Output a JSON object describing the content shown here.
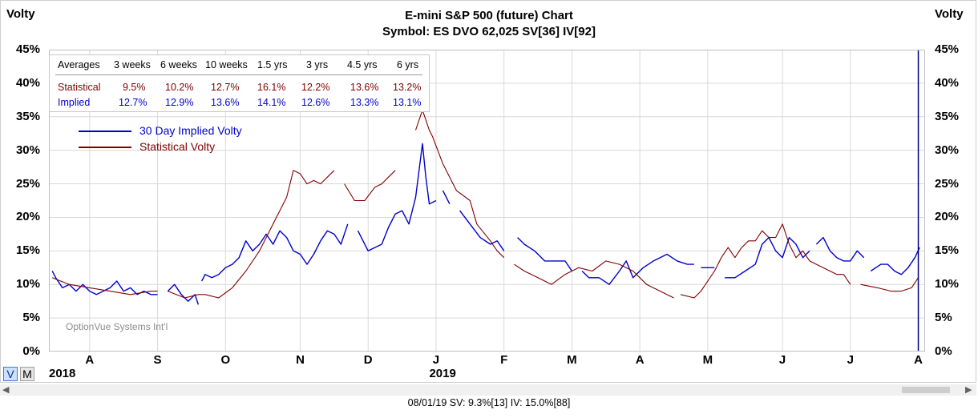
{
  "header": {
    "left_label": "Volty",
    "right_label": "Volty",
    "title": "E-mini S&P 500 (future) Chart",
    "subtitle": "Symbol: ES  DVO 62,025  SV[36]  IV[92]"
  },
  "averages": {
    "columns": [
      "Averages",
      "3 weeks",
      "6 weeks",
      "10 weeks",
      "1.5 yrs",
      "3 yrs",
      "4.5 yrs",
      "6 yrs"
    ],
    "statistical": {
      "label": "Statistical",
      "values": [
        "9.5%",
        "10.2%",
        "12.7%",
        "16.1%",
        "12.2%",
        "13.6%",
        "13.2%"
      ]
    },
    "implied": {
      "label": "Implied",
      "values": [
        "12.7%",
        "12.9%",
        "13.6%",
        "14.1%",
        "12.6%",
        "13.3%",
        "13.1%"
      ]
    }
  },
  "legend": {
    "implied": "30 Day Implied Volty",
    "statistical": "Statistical Volty"
  },
  "watermark": "OptionVue Systems Int'l",
  "buttons": {
    "v": "V",
    "m": "M"
  },
  "status": "08/01/19  SV: 9.3%[13]  IV: 15.0%[88]",
  "colors": {
    "implied": "#0000cc",
    "statistical": "#800000",
    "grid": "#d9d9d9",
    "cursor": "#00008b"
  },
  "chart_data": {
    "type": "line",
    "ylim": [
      0,
      45
    ],
    "y_ticks": [
      "0%",
      "5%",
      "10%",
      "15%",
      "20%",
      "25%",
      "30%",
      "35%",
      "40%",
      "45%"
    ],
    "x_range": [
      0,
      12.9
    ],
    "month_ticks": [
      {
        "label": "A",
        "x": 0.6
      },
      {
        "label": "S",
        "x": 1.6
      },
      {
        "label": "O",
        "x": 2.6
      },
      {
        "label": "N",
        "x": 3.7
      },
      {
        "label": "D",
        "x": 4.7
      },
      {
        "label": "J",
        "x": 5.7
      },
      {
        "label": "F",
        "x": 6.7
      },
      {
        "label": "M",
        "x": 7.7
      },
      {
        "label": "A",
        "x": 8.7
      },
      {
        "label": "M",
        "x": 9.7
      },
      {
        "label": "J",
        "x": 10.8
      },
      {
        "label": "J",
        "x": 11.8
      },
      {
        "label": "A",
        "x": 12.8
      }
    ],
    "year_labels": [
      {
        "label": "2018",
        "x": 0.0
      },
      {
        "label": "2019",
        "x": 5.6
      }
    ],
    "cursor_x": 12.8,
    "series": [
      {
        "key": "implied",
        "name": "30 Day Implied Volty",
        "segments": [
          [
            [
              0.05,
              12
            ],
            [
              0.1,
              11
            ],
            [
              0.2,
              9.5
            ],
            [
              0.3,
              10
            ],
            [
              0.4,
              9
            ],
            [
              0.5,
              10
            ],
            [
              0.6,
              9
            ],
            [
              0.7,
              8.5
            ],
            [
              0.8,
              9
            ],
            [
              0.9,
              9.5
            ],
            [
              1.0,
              10.5
            ],
            [
              1.1,
              9
            ],
            [
              1.2,
              9.5
            ],
            [
              1.3,
              8.5
            ],
            [
              1.4,
              9
            ],
            [
              1.5,
              8.5
            ],
            [
              1.6,
              8.5
            ]
          ],
          [
            [
              1.75,
              9
            ],
            [
              1.85,
              10
            ],
            [
              1.95,
              8.5
            ],
            [
              2.05,
              7.5
            ],
            [
              2.15,
              8.5
            ],
            [
              2.2,
              7
            ]
          ],
          [
            [
              2.25,
              10.5
            ],
            [
              2.3,
              11.5
            ],
            [
              2.4,
              11
            ],
            [
              2.5,
              11.5
            ],
            [
              2.6,
              12.5
            ],
            [
              2.7,
              13
            ],
            [
              2.8,
              14
            ],
            [
              2.9,
              16.5
            ],
            [
              3.0,
              15
            ],
            [
              3.1,
              16
            ],
            [
              3.2,
              17.5
            ],
            [
              3.3,
              16
            ],
            [
              3.4,
              18
            ],
            [
              3.5,
              17
            ],
            [
              3.6,
              15
            ],
            [
              3.7,
              14.5
            ],
            [
              3.8,
              13
            ],
            [
              3.9,
              14.5
            ],
            [
              4.0,
              16.5
            ],
            [
              4.1,
              18
            ],
            [
              4.2,
              17.5
            ],
            [
              4.3,
              16
            ],
            [
              4.4,
              19
            ]
          ],
          [
            [
              4.55,
              18
            ],
            [
              4.7,
              15
            ],
            [
              4.8,
              15.5
            ],
            [
              4.9,
              16
            ],
            [
              5.0,
              18.5
            ],
            [
              5.1,
              20.5
            ],
            [
              5.2,
              21
            ],
            [
              5.3,
              19
            ],
            [
              5.4,
              23
            ],
            [
              5.5,
              31
            ],
            [
              5.55,
              26
            ],
            [
              5.6,
              22
            ],
            [
              5.7,
              22.5
            ]
          ],
          [
            [
              5.8,
              24
            ],
            [
              5.9,
              22
            ]
          ],
          [
            [
              6.05,
              21
            ],
            [
              6.2,
              19
            ],
            [
              6.35,
              17
            ],
            [
              6.5,
              16
            ],
            [
              6.6,
              16.5
            ],
            [
              6.7,
              15
            ]
          ],
          [
            [
              6.9,
              17
            ],
            [
              7.0,
              16
            ],
            [
              7.15,
              15
            ],
            [
              7.3,
              13.5
            ],
            [
              7.45,
              13.5
            ],
            [
              7.6,
              13.5
            ],
            [
              7.7,
              12
            ]
          ],
          [
            [
              7.85,
              12
            ],
            [
              7.95,
              11
            ],
            [
              8.1,
              11
            ],
            [
              8.25,
              10
            ],
            [
              8.4,
              12
            ],
            [
              8.5,
              13.5
            ],
            [
              8.6,
              11
            ],
            [
              8.75,
              12.5
            ],
            [
              8.9,
              13.5
            ],
            [
              9.0,
              14
            ],
            [
              9.1,
              14.5
            ],
            [
              9.25,
              13.5
            ],
            [
              9.4,
              13
            ],
            [
              9.5,
              13
            ]
          ],
          [
            [
              9.6,
              12.5
            ],
            [
              9.8,
              12.5
            ]
          ],
          [
            [
              9.95,
              11
            ],
            [
              10.1,
              11
            ],
            [
              10.25,
              12
            ],
            [
              10.4,
              13
            ],
            [
              10.5,
              16
            ],
            [
              10.6,
              17
            ],
            [
              10.7,
              15
            ],
            [
              10.8,
              14
            ],
            [
              10.9,
              17
            ],
            [
              11.0,
              16
            ],
            [
              11.1,
              14
            ],
            [
              11.2,
              15
            ]
          ],
          [
            [
              11.3,
              16
            ],
            [
              11.4,
              17
            ],
            [
              11.5,
              15
            ],
            [
              11.6,
              14
            ],
            [
              11.7,
              13.5
            ],
            [
              11.8,
              13.5
            ],
            [
              11.9,
              15
            ],
            [
              12.0,
              14
            ]
          ],
          [
            [
              12.1,
              12
            ],
            [
              12.25,
              13
            ],
            [
              12.35,
              13
            ],
            [
              12.45,
              12
            ],
            [
              12.55,
              11.5
            ],
            [
              12.65,
              12.5
            ],
            [
              12.75,
              14
            ],
            [
              12.82,
              15.5
            ]
          ]
        ]
      },
      {
        "key": "statistical",
        "name": "Statistical Volty",
        "segments": [
          [
            [
              0.05,
              11
            ],
            [
              0.3,
              10
            ],
            [
              0.6,
              9.5
            ],
            [
              0.9,
              9
            ],
            [
              1.2,
              8.5
            ],
            [
              1.5,
              9
            ],
            [
              1.6,
              9
            ]
          ],
          [
            [
              1.75,
              9
            ],
            [
              2.0,
              8
            ],
            [
              2.2,
              8.5
            ],
            [
              2.3,
              8.5
            ],
            [
              2.5,
              8
            ],
            [
              2.7,
              9.5
            ],
            [
              2.9,
              12
            ],
            [
              3.1,
              15
            ],
            [
              3.3,
              19
            ],
            [
              3.5,
              23
            ],
            [
              3.6,
              27
            ],
            [
              3.7,
              26.5
            ],
            [
              3.8,
              25
            ],
            [
              3.9,
              25.5
            ],
            [
              4.0,
              25
            ],
            [
              4.1,
              26
            ],
            [
              4.2,
              27
            ]
          ],
          [
            [
              4.35,
              25
            ],
            [
              4.5,
              22.5
            ],
            [
              4.65,
              22.5
            ],
            [
              4.8,
              24.5
            ],
            [
              4.9,
              25
            ],
            [
              5.0,
              26
            ],
            [
              5.1,
              27
            ]
          ],
          [
            [
              5.4,
              33
            ],
            [
              5.5,
              36
            ],
            [
              5.6,
              33
            ],
            [
              5.65,
              32
            ],
            [
              5.8,
              28
            ],
            [
              5.9,
              26
            ],
            [
              6.0,
              24
            ],
            [
              6.2,
              22.5
            ],
            [
              6.3,
              19
            ],
            [
              6.5,
              16.5
            ],
            [
              6.6,
              15
            ],
            [
              6.7,
              14
            ]
          ],
          [
            [
              6.85,
              13
            ],
            [
              7.0,
              12
            ],
            [
              7.2,
              11
            ],
            [
              7.4,
              10
            ],
            [
              7.6,
              11.5
            ],
            [
              7.8,
              12.5
            ],
            [
              8.0,
              12
            ],
            [
              8.2,
              13.5
            ],
            [
              8.4,
              13
            ],
            [
              8.6,
              12
            ],
            [
              8.8,
              10
            ],
            [
              9.0,
              9
            ],
            [
              9.2,
              8
            ]
          ],
          [
            [
              9.3,
              8.5
            ],
            [
              9.5,
              8
            ],
            [
              9.6,
              9
            ],
            [
              9.8,
              12
            ],
            [
              9.9,
              14
            ],
            [
              10.0,
              15.5
            ],
            [
              10.1,
              14
            ],
            [
              10.2,
              15.5
            ],
            [
              10.3,
              16.5
            ],
            [
              10.4,
              16.5
            ],
            [
              10.5,
              18
            ],
            [
              10.6,
              17
            ],
            [
              10.7,
              17
            ],
            [
              10.8,
              19
            ],
            [
              10.9,
              16
            ],
            [
              11.0,
              14
            ],
            [
              11.1,
              15
            ],
            [
              11.2,
              13.5
            ],
            [
              11.3,
              13
            ],
            [
              11.4,
              12.5
            ],
            [
              11.5,
              12
            ],
            [
              11.6,
              11.5
            ],
            [
              11.7,
              11.5
            ],
            [
              11.8,
              10
            ]
          ],
          [
            [
              11.95,
              10
            ],
            [
              12.2,
              9.5
            ],
            [
              12.4,
              9
            ],
            [
              12.55,
              9
            ],
            [
              12.7,
              9.5
            ],
            [
              12.8,
              11
            ]
          ]
        ]
      }
    ]
  }
}
